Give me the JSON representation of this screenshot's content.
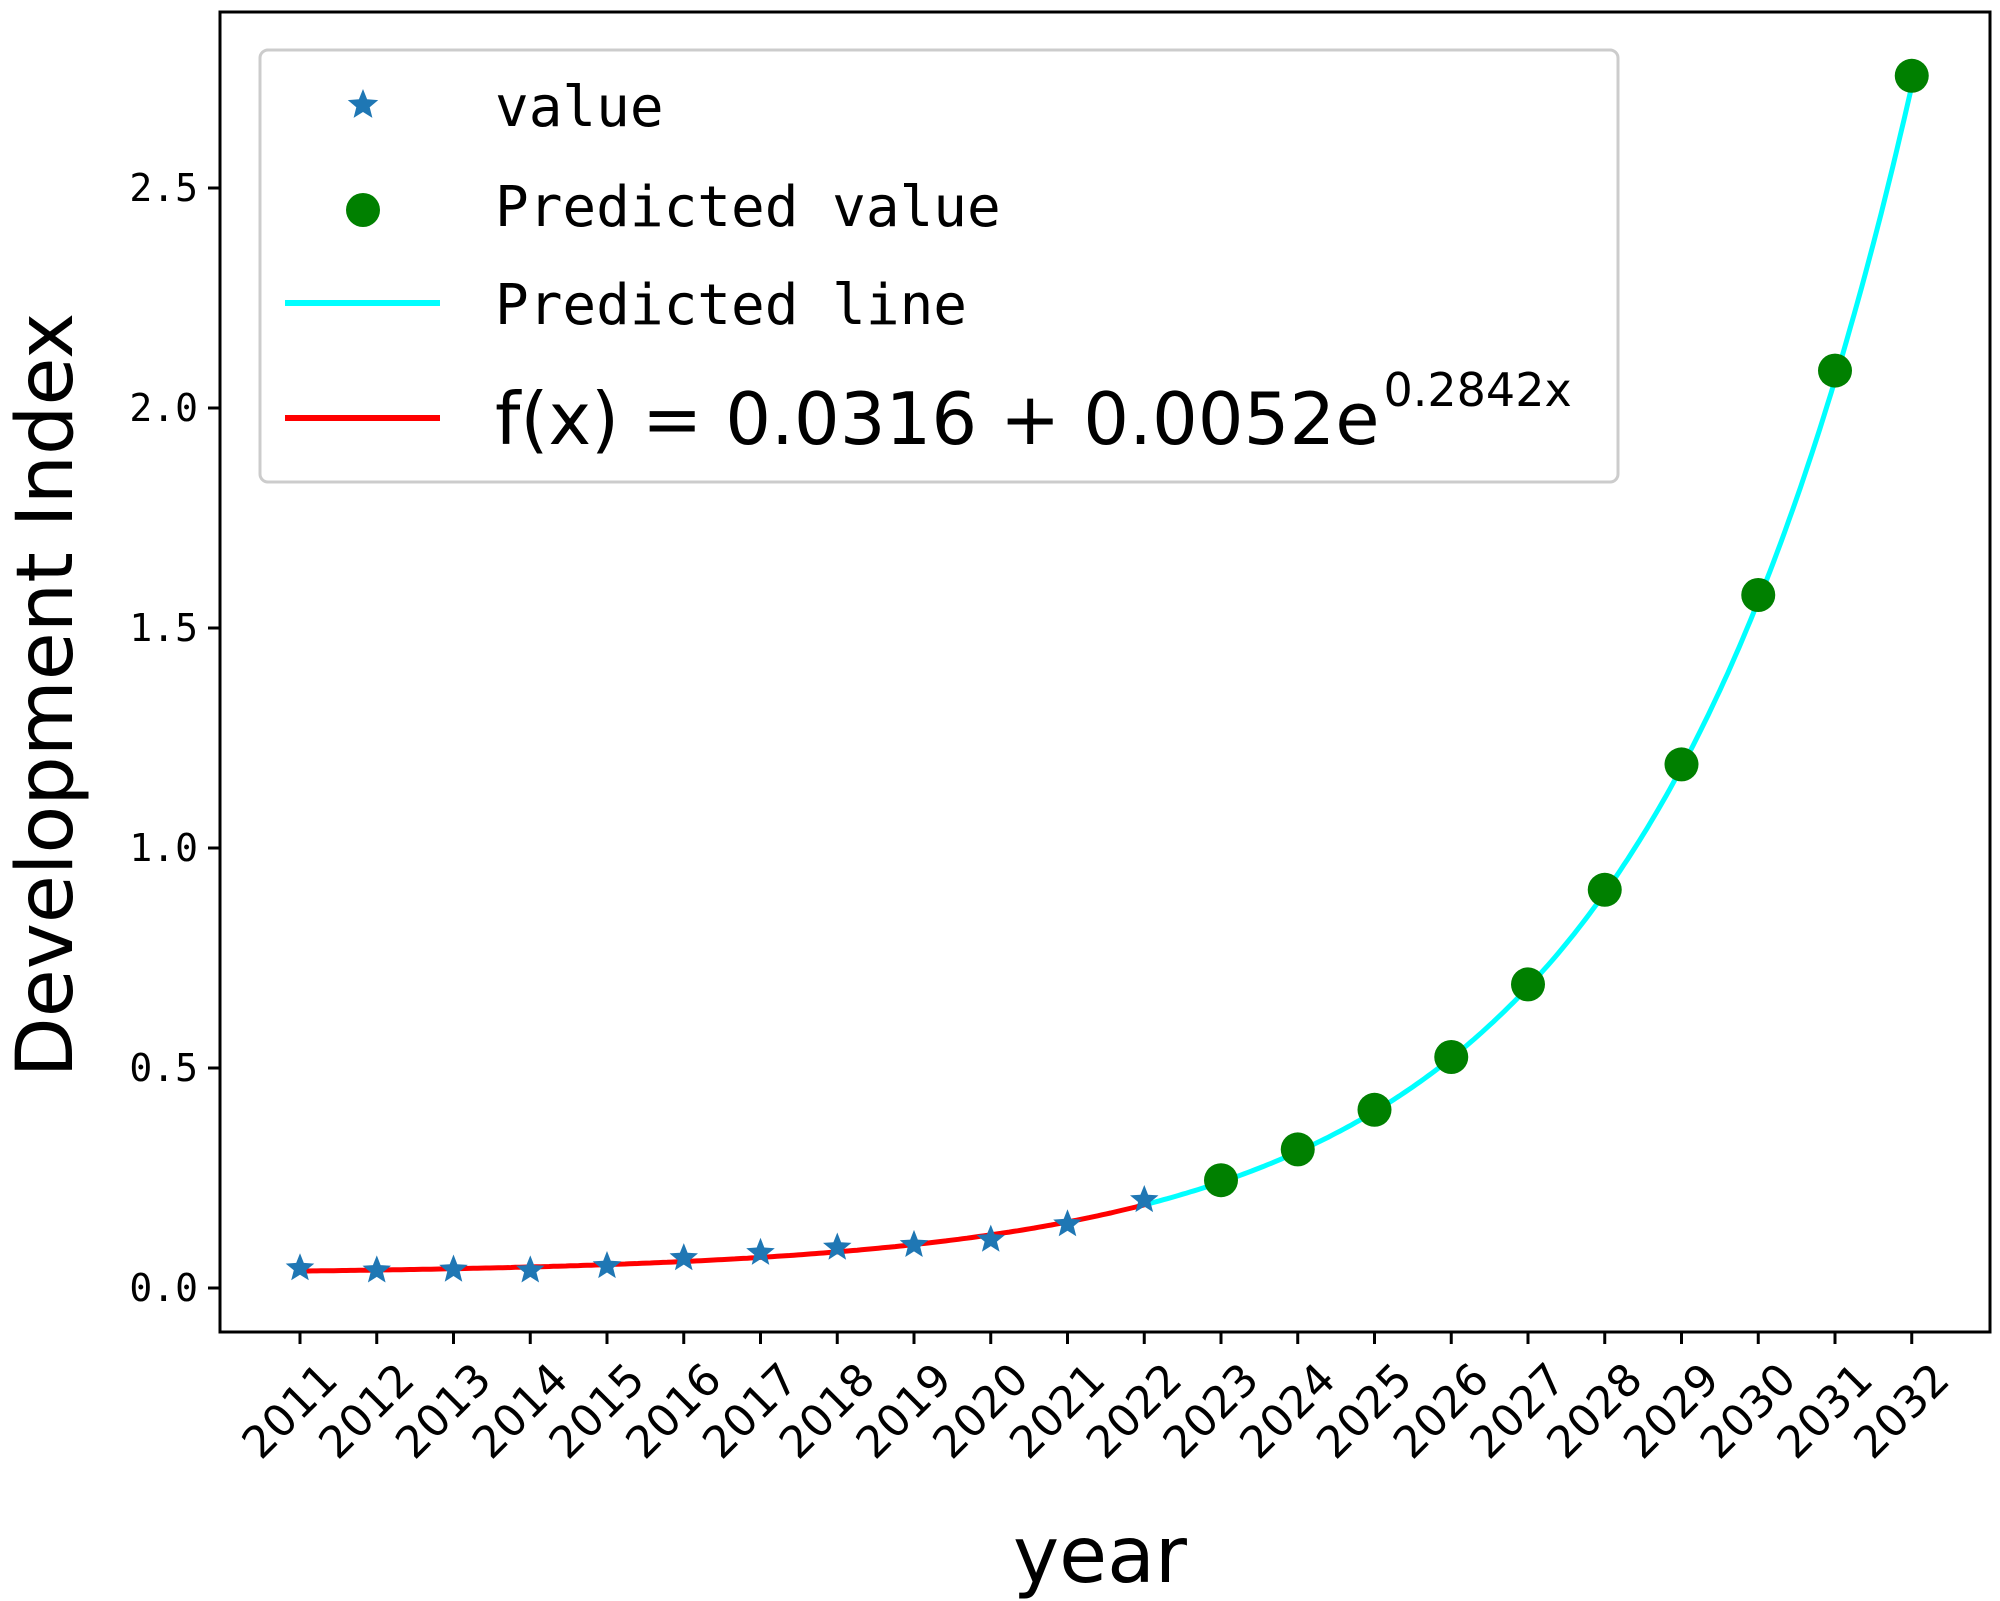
{
  "chart_data": {
    "type": "line",
    "title": "",
    "xlabel": "year",
    "ylabel": "Development Index",
    "ylim": [
      -0.1,
      2.9
    ],
    "yticks": [
      0.0,
      0.5,
      1.0,
      1.5,
      2.0,
      2.5
    ],
    "ytick_labels": [
      "0.0",
      "0.5",
      "1.0",
      "1.5",
      "2.0",
      "2.5"
    ],
    "categories": [
      "2011",
      "2012",
      "2013",
      "2014",
      "2015",
      "2016",
      "2017",
      "2018",
      "2019",
      "2020",
      "2021",
      "2022",
      "2023",
      "2024",
      "2025",
      "2026",
      "2027",
      "2028",
      "2029",
      "2030",
      "2031",
      "2032"
    ],
    "grid": false,
    "legend_position": "top-left",
    "series": [
      {
        "name": "value",
        "kind": "star-markers",
        "color": "#1f77b4",
        "x": [
          "2011",
          "2012",
          "2013",
          "2014",
          "2015",
          "2016",
          "2017",
          "2018",
          "2019",
          "2020",
          "2021",
          "2022"
        ],
        "values": [
          0.045,
          0.04,
          0.042,
          0.04,
          0.05,
          0.068,
          0.08,
          0.092,
          0.098,
          0.11,
          0.145,
          0.2
        ]
      },
      {
        "name": "Predicted value",
        "kind": "circle-markers",
        "color": "#008000",
        "x": [
          "2023",
          "2024",
          "2025",
          "2026",
          "2027",
          "2028",
          "2029",
          "2030",
          "2031",
          "2032"
        ],
        "values": [
          0.245,
          0.315,
          0.405,
          0.525,
          0.69,
          0.905,
          1.19,
          1.575,
          2.085,
          2.755
        ]
      },
      {
        "name": "Predicted line",
        "kind": "line",
        "color": "#00ffff",
        "x_range": [
          "2022",
          "2032"
        ]
      },
      {
        "name": "f(x) = 0.0316 + 0.0052e^{0.2842x}",
        "kind": "line",
        "color": "#ff0000",
        "x_range": [
          "2011",
          "2022"
        ]
      }
    ],
    "fit": {
      "a": 0.0316,
      "b": 0.0052,
      "k": 0.2842,
      "x_origin_year": 2011,
      "x_start": 1
    },
    "legend": {
      "value_label": "value",
      "predicted_value_label": "Predicted value",
      "predicted_line_label": "Predicted line",
      "formula_main": "f(x) = 0.0316 + 0.0052e",
      "formula_exponent": "0.2842x"
    }
  }
}
